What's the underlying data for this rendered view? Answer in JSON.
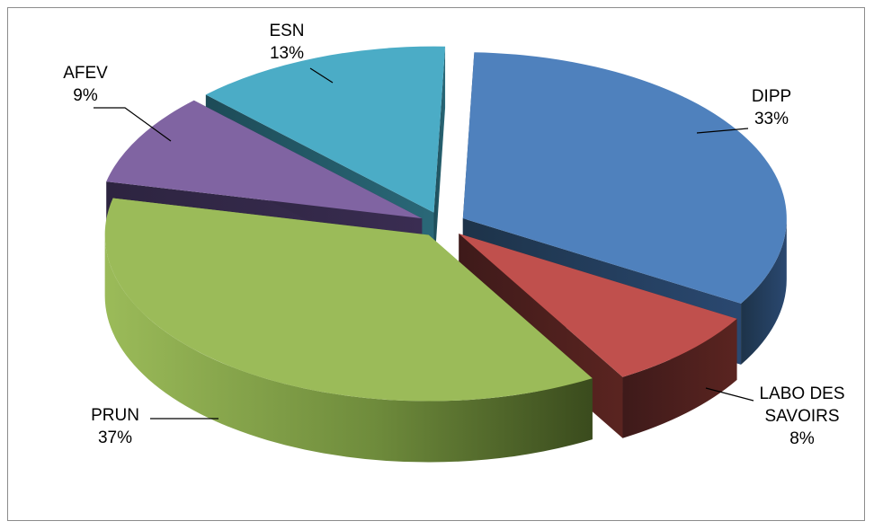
{
  "chart_data": {
    "type": "pie",
    "title": "",
    "categories": [
      "DIPP",
      "LABO DES SAVOIRS",
      "PRUN",
      "AFEV",
      "ESN"
    ],
    "values": [
      33,
      8,
      37,
      9,
      13
    ],
    "value_labels": [
      "33%",
      "8%",
      "37%",
      "9%",
      "13%"
    ],
    "label_lines": [
      [
        "DIPP"
      ],
      [
        "LABO DES",
        "SAVOIRS"
      ],
      [
        "PRUN"
      ],
      [
        "AFEV"
      ],
      [
        "ESN"
      ]
    ],
    "colors": [
      "#4f81bd",
      "#c0504d",
      "#9bbb59",
      "#8064a2",
      "#4bacc6"
    ],
    "style": "3d-exploded",
    "legend": "none"
  }
}
